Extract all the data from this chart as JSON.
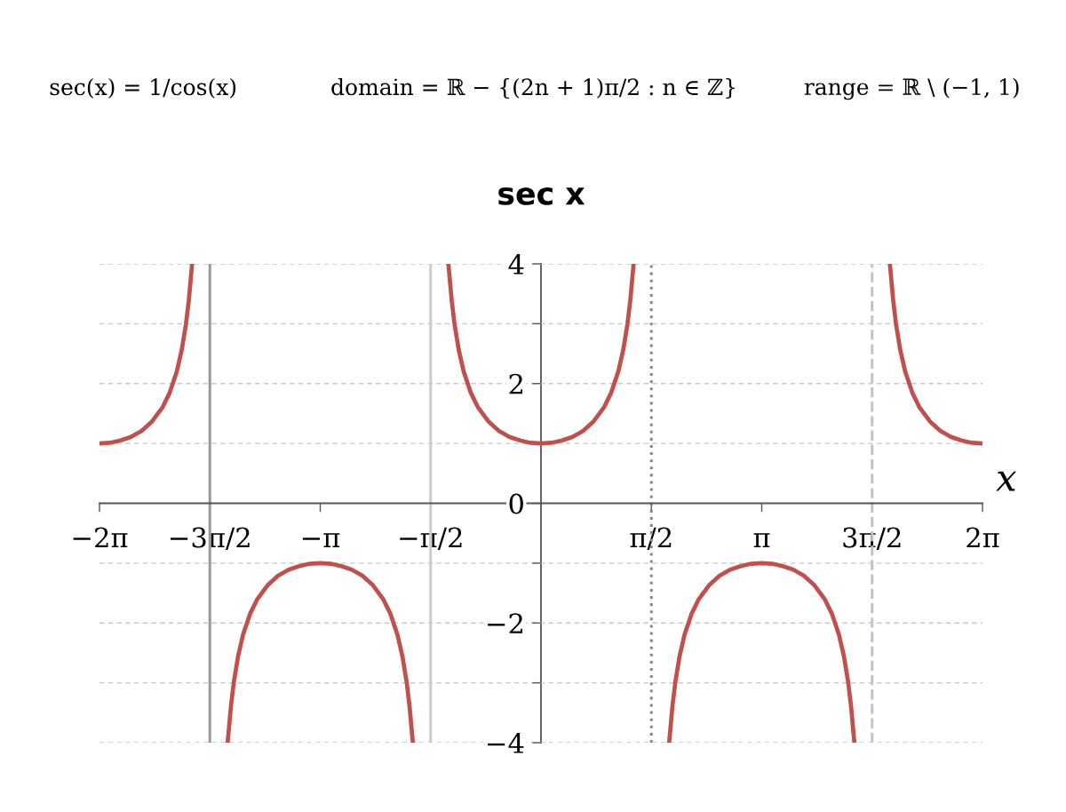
{
  "chart_data": {
    "type": "line",
    "title": "sec x",
    "xlabel": "x",
    "annotations": [
      "sec(x) = 1/cos(x)",
      "domain = ℝ − {(2n + 1)π/2 : n ∈ ℤ}",
      "range = ℝ \\ (−1, 1)"
    ],
    "x": [
      -6.2832,
      -6.1332,
      -5.9832,
      -5.8332,
      -5.6832,
      -5.5332,
      -5.3832,
      -5.2832,
      -5.1832,
      -5.1132,
      -5.0532,
      -5.0132,
      -4.9652,
      -4.7124,
      -4.4596,
      -4.4116,
      -4.3716,
      -4.3116,
      -4.2416,
      -4.1416,
      -4.0416,
      -3.8916,
      -3.7416,
      -3.5916,
      -3.4416,
      -3.2916,
      -3.1416,
      -2.9916,
      -2.8416,
      -2.6916,
      -2.5416,
      -2.3916,
      -2.2416,
      -2.1416,
      -2.0416,
      -1.9716,
      -1.9116,
      -1.8716,
      -1.8236,
      -1.5708,
      -1.318,
      -1.27,
      -1.23,
      -1.17,
      -1.1,
      -1.0,
      -0.9,
      -0.75,
      -0.6,
      -0.45,
      -0.3,
      -0.15,
      0,
      0.15,
      0.3,
      0.45,
      0.6,
      0.75,
      0.9,
      1.0,
      1.1,
      1.17,
      1.23,
      1.27,
      1.318,
      1.5708,
      1.8236,
      1.8716,
      1.9116,
      1.9716,
      2.0416,
      2.1416,
      2.2416,
      2.3916,
      2.5416,
      2.6916,
      2.8416,
      2.9916,
      3.1416,
      3.2916,
      3.4416,
      3.5916,
      3.7416,
      3.8916,
      4.0416,
      4.1416,
      4.2416,
      4.3116,
      4.3716,
      4.4116,
      4.4596,
      4.7124,
      4.9652,
      5.0132,
      5.0532,
      5.1132,
      5.1832,
      5.2832,
      5.3832,
      5.5332,
      5.6832,
      5.8332,
      5.9832,
      6.1332,
      6.2832
    ],
    "series": [
      {
        "color": "#c0504d",
        "values": [
          1,
          1.01,
          1.05,
          1.11,
          1.21,
          1.37,
          1.61,
          1.85,
          2.2,
          2.56,
          2.99,
          3.38,
          4,
          null,
          -4,
          -3.38,
          -2.99,
          -2.56,
          -2.2,
          -1.85,
          -1.61,
          -1.37,
          -1.21,
          -1.11,
          -1.05,
          -1.01,
          -1,
          -1.01,
          -1.05,
          -1.11,
          -1.21,
          -1.37,
          -1.61,
          -1.85,
          -2.2,
          -2.56,
          -2.99,
          -3.38,
          -4,
          null,
          4,
          3.38,
          2.99,
          2.56,
          2.2,
          1.85,
          1.61,
          1.37,
          1.21,
          1.11,
          1.05,
          1.01,
          1,
          1.01,
          1.05,
          1.11,
          1.21,
          1.37,
          1.61,
          1.85,
          2.2,
          2.56,
          2.99,
          3.38,
          4,
          null,
          -4,
          -3.38,
          -2.99,
          -2.56,
          -2.2,
          -1.85,
          -1.61,
          -1.37,
          -1.21,
          -1.11,
          -1.05,
          -1.01,
          -1,
          -1.01,
          -1.05,
          -1.11,
          -1.21,
          -1.37,
          -1.61,
          -1.85,
          -2.2,
          -2.56,
          -2.99,
          -3.38,
          -4,
          null,
          4,
          3.38,
          2.99,
          2.56,
          2.2,
          1.85,
          1.61,
          1.37,
          1.21,
          1.11,
          1.05,
          1.01,
          1
        ]
      }
    ],
    "xlim": [
      -6.2832,
      6.2832
    ],
    "xticks": [
      {
        "value": -6.2832,
        "label": "−2π"
      },
      {
        "value": -4.7124,
        "label": "−3π/2"
      },
      {
        "value": -3.1416,
        "label": "−π"
      },
      {
        "value": -1.5708,
        "label": "−π/2"
      },
      {
        "value": 1.5708,
        "label": "π/2"
      },
      {
        "value": 3.1416,
        "label": "π"
      },
      {
        "value": 4.7124,
        "label": "3π/2"
      },
      {
        "value": 6.2832,
        "label": "2π"
      }
    ],
    "ylim": [
      -4,
      4
    ],
    "yticks": [
      {
        "value": -4,
        "label": "−4"
      },
      {
        "value": -3,
        "label": null
      },
      {
        "value": -2,
        "label": "−2"
      },
      {
        "value": -1,
        "label": null
      },
      0,
      {
        "value": 1,
        "label": null
      },
      2,
      {
        "value": 3,
        "label": null
      },
      4
    ],
    "grid": "y",
    "line_style": "solid",
    "ref_lines": [
      {
        "axis": "x",
        "value": -4.7124,
        "color": "#999999",
        "line_style": "solid"
      },
      {
        "axis": "x",
        "value": -1.5708,
        "color": "#cccccc",
        "line_style": "solid"
      },
      {
        "axis": "x",
        "value": 1.5708,
        "color": "#888888",
        "line_style": "dotted"
      },
      {
        "axis": "x",
        "value": 4.7124,
        "color": "#c4c4c4",
        "line_style": "dashed"
      }
    ]
  }
}
